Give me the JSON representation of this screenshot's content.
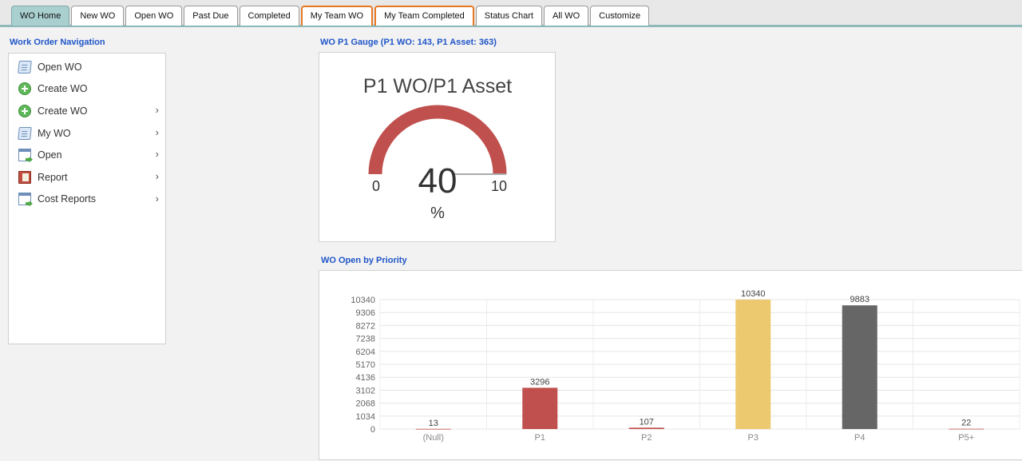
{
  "tabs": [
    {
      "label": "WO Home",
      "active": true
    },
    {
      "label": "New WO"
    },
    {
      "label": "Open WO"
    },
    {
      "label": "Past Due"
    },
    {
      "label": "Completed"
    },
    {
      "label": "My Team WO",
      "highlighted": true
    },
    {
      "label": "My Team Completed",
      "highlighted": true
    },
    {
      "label": "Status Chart"
    },
    {
      "label": "All WO"
    },
    {
      "label": "Customize"
    }
  ],
  "nav": {
    "title": "Work Order Navigation",
    "items": [
      {
        "label": "Open WO",
        "icon": "document-icon",
        "submenu": false
      },
      {
        "label": "Create WO",
        "icon": "add-circle-icon",
        "submenu": false
      },
      {
        "label": "Create WO",
        "icon": "add-circle-icon",
        "submenu": true
      },
      {
        "label": "My WO",
        "icon": "document-icon",
        "submenu": true
      },
      {
        "label": "Open",
        "icon": "window-arrow-icon",
        "submenu": true
      },
      {
        "label": "Report",
        "icon": "book-icon",
        "submenu": true
      },
      {
        "label": "Cost Reports",
        "icon": "window-arrow-icon",
        "submenu": true
      }
    ],
    "chevron": "›"
  },
  "gauge": {
    "panel_title": "WO P1 Gauge (P1 WO: 143, P1 Asset: 363)",
    "heading": "P1 WO/P1 Asset",
    "value": "40",
    "unit": "%",
    "min": "0",
    "max": "10",
    "color": "#c0504d"
  },
  "chart_panel_title": "WO Open by Priority",
  "chart_data": {
    "type": "bar",
    "categories": [
      "(Null)",
      "P1",
      "P2",
      "P3",
      "P4",
      "P5+"
    ],
    "values": [
      13,
      3296,
      107,
      10340,
      9883,
      22
    ],
    "colors": [
      "#c0504d",
      "#c0504d",
      "#c0504d",
      "#ecc96e",
      "#666666",
      "#c0504d"
    ],
    "yticks": [
      0,
      1034,
      2068,
      3102,
      4136,
      5170,
      6204,
      7238,
      8272,
      9306,
      10340
    ],
    "ylim": [
      0,
      10340
    ],
    "grid": true
  }
}
